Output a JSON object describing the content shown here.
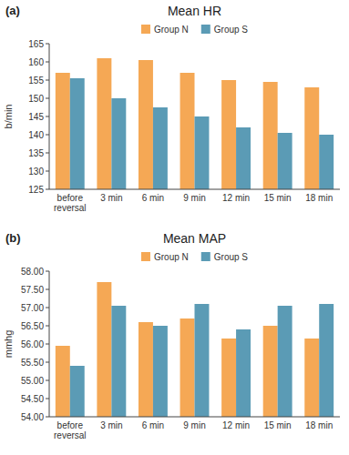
{
  "chart_data": [
    {
      "type": "bar",
      "title": "Mean HR",
      "y_label": "b/min",
      "annotations": [
        "(a)"
      ],
      "categories": [
        "before\nreversal",
        "3 min",
        "6 min",
        "9 min",
        "12 min",
        "15 min",
        "18 min"
      ],
      "series": [
        {
          "name": "Group N",
          "color": "#F5A855",
          "values": [
            157,
            161,
            160.5,
            157,
            155,
            154.5,
            153
          ]
        },
        {
          "name": "Group S",
          "color": "#5B9BB5",
          "values": [
            155.5,
            150,
            147.5,
            145,
            142,
            140.5,
            140
          ]
        }
      ],
      "ylim": [
        125,
        165
      ],
      "yticks": [
        125,
        130,
        135,
        140,
        145,
        150,
        155,
        160,
        165
      ],
      "legend": "top",
      "grid": false
    },
    {
      "type": "bar",
      "title": "Mean MAP",
      "y_label": "mmhg",
      "annotations": [
        "(b)"
      ],
      "categories": [
        "before\nreversal",
        "3 min",
        "6 min",
        "9 min",
        "12 min",
        "15 min",
        "18 min"
      ],
      "series": [
        {
          "name": "Group N",
          "color": "#F5A855",
          "values": [
            55.95,
            57.7,
            56.6,
            56.7,
            56.15,
            56.5,
            56.15
          ]
        },
        {
          "name": "Group S",
          "color": "#5B9BB5",
          "values": [
            55.4,
            57.05,
            56.5,
            57.1,
            56.4,
            57.05,
            57.1
          ]
        }
      ],
      "ylim": [
        54.0,
        58.0
      ],
      "yticks": [
        {
          "value": 54.0,
          "label": "54.00"
        },
        {
          "value": 54.5,
          "label": "54.50"
        },
        {
          "value": 55.0,
          "label": "55.00"
        },
        {
          "value": 55.5,
          "label": "55.50"
        },
        {
          "value": 56.0,
          "label": "56.00"
        },
        {
          "value": 56.5,
          "label": "56.50"
        },
        {
          "value": 57.0,
          "label": "57.00"
        },
        {
          "value": 57.5,
          "label": "57.50"
        },
        {
          "value": 58.0,
          "label": "58.00"
        }
      ],
      "legend": "top",
      "grid": false
    }
  ]
}
